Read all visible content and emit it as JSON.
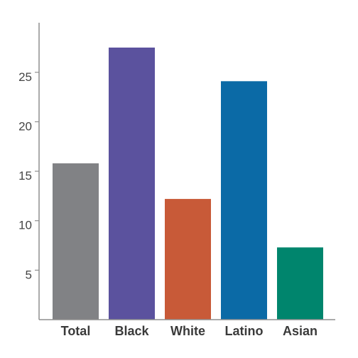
{
  "chart_data": {
    "type": "bar",
    "categories": [
      "Total",
      "Black",
      "White",
      "Latino",
      "Asian"
    ],
    "values": [
      15.8,
      27.5,
      12.2,
      24.1,
      7.3
    ],
    "colors": [
      "#818285",
      "#5b529e",
      "#c85a38",
      "#0b6aa6",
      "#00856d"
    ],
    "title": "",
    "xlabel": "",
    "ylabel": "",
    "ylim": [
      0,
      30
    ],
    "yticks": [
      5,
      10,
      15,
      20,
      25
    ],
    "grid": false,
    "legend": "none"
  }
}
